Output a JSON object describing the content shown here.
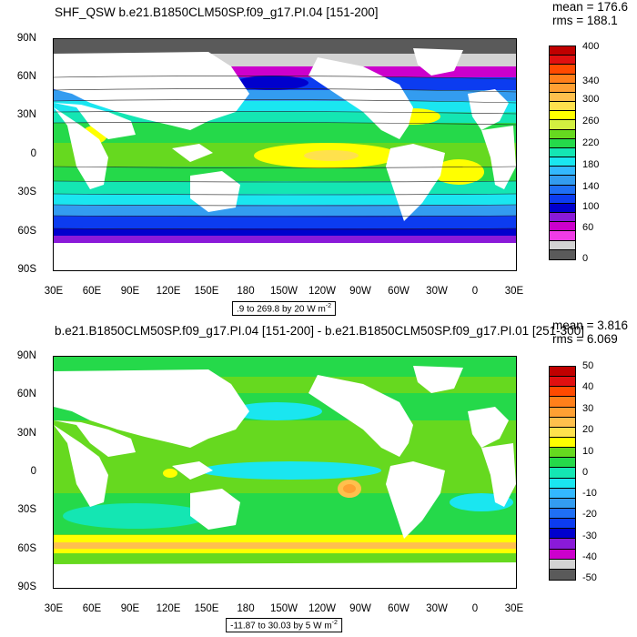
{
  "top": {
    "title": "SHF_QSW b.e21.B1850CLM50SP.f09_g17.PI.04 [151-200]",
    "mean": "mean = 176.6",
    "rms": "rms = 188.1",
    "range_text": ".9 to 269.8 by 20",
    "units": "W m",
    "units_exp": "-2",
    "y_labels": [
      "90N",
      "60N",
      "30N",
      "0",
      "30S",
      "60S",
      "90S"
    ],
    "x_labels": [
      "30E",
      "60E",
      "90E",
      "120E",
      "150E",
      "180",
      "150W",
      "120W",
      "90W",
      "60W",
      "30W",
      "0",
      "30E"
    ],
    "colorbar_labels": [
      "400",
      "340",
      "300",
      "260",
      "220",
      "180",
      "140",
      "100",
      "60",
      "0"
    ],
    "colorbar_colors": [
      "#c00000",
      "#e01010",
      "#ff4a00",
      "#ff7f1a",
      "#ffa033",
      "#ffc04d",
      "#ffe14d",
      "#ffff00",
      "#d3f040",
      "#66d91f",
      "#25d94a",
      "#14e6b3",
      "#1ae6f0",
      "#33b8ff",
      "#339cf0",
      "#1f6ff5",
      "#0c3cf0",
      "#0000cd",
      "#8a1ad9",
      "#cc00cc",
      "#f03ce6",
      "#d3d3d3",
      "#5a5a5a"
    ]
  },
  "bottom": {
    "title": "b.e21.B1850CLM50SP.f09_g17.PI.04 [151-200] - b.e21.B1850CLM50SP.f09_g17.PI.01 [251-300]",
    "mean": "mean = 3.816",
    "rms": "rms = 6.069",
    "range_text": "-11.87 to 30.03 by 5",
    "units": "W m",
    "units_exp": "-2",
    "y_labels": [
      "90N",
      "60N",
      "30N",
      "0",
      "30S",
      "60S",
      "90S"
    ],
    "x_labels": [
      "30E",
      "60E",
      "90E",
      "120E",
      "150E",
      "180",
      "150W",
      "120W",
      "90W",
      "60W",
      "30W",
      "0",
      "30E"
    ],
    "colorbar_labels": [
      "50",
      "40",
      "30",
      "20",
      "10",
      "0",
      "-10",
      "-20",
      "-30",
      "-40",
      "-50"
    ],
    "colorbar_colors": [
      "#c00000",
      "#e01010",
      "#ff4a00",
      "#ff7f1a",
      "#ffa033",
      "#ffc04d",
      "#ffe14d",
      "#ffff00",
      "#66d91f",
      "#25d94a",
      "#14e6b3",
      "#1ae6f0",
      "#33b8ff",
      "#339cf0",
      "#1f6ff5",
      "#0c3cf0",
      "#0000cd",
      "#8a1ad9",
      "#cc00cc",
      "#d3d3d3",
      "#5a5a5a"
    ]
  }
}
